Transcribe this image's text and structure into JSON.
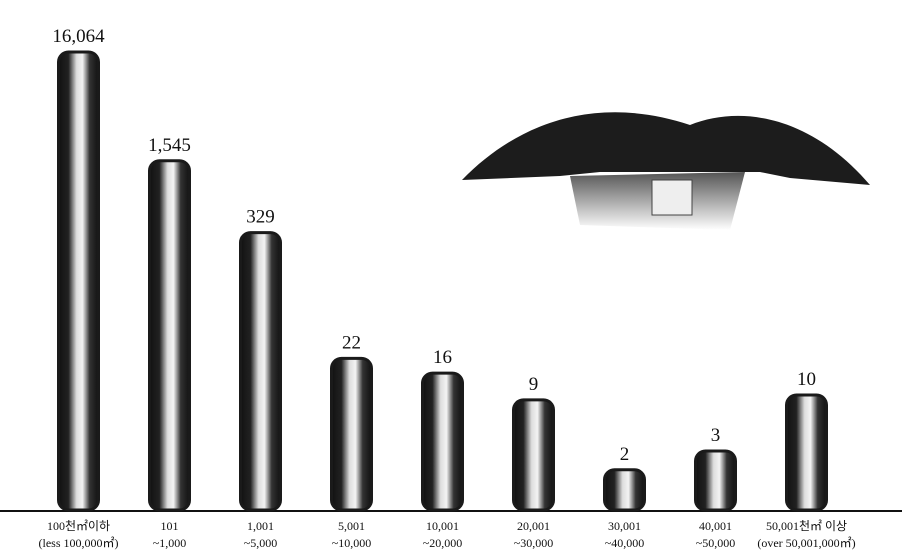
{
  "chart_data": {
    "type": "bar",
    "categories": [
      [
        "100천㎡이하",
        "(less 100,000㎡)"
      ],
      [
        "101",
        "~1,000"
      ],
      [
        "1,001",
        "~5,000"
      ],
      [
        "5,001",
        "~10,000"
      ],
      [
        "10,001",
        "~20,000"
      ],
      [
        "20,001",
        "~30,000"
      ],
      [
        "30,001",
        "~40,000"
      ],
      [
        "40,001",
        "~50,000"
      ],
      [
        "50,001천㎡ 이상",
        "(over 50,001,000㎡)"
      ]
    ],
    "values": [
      16064,
      1545,
      329,
      22,
      16,
      9,
      2,
      3,
      10
    ],
    "value_labels": [
      "16,064",
      "1,545",
      "329",
      "22",
      "16",
      "9",
      "2",
      "3",
      "10"
    ],
    "color": "#1a1a1a"
  }
}
